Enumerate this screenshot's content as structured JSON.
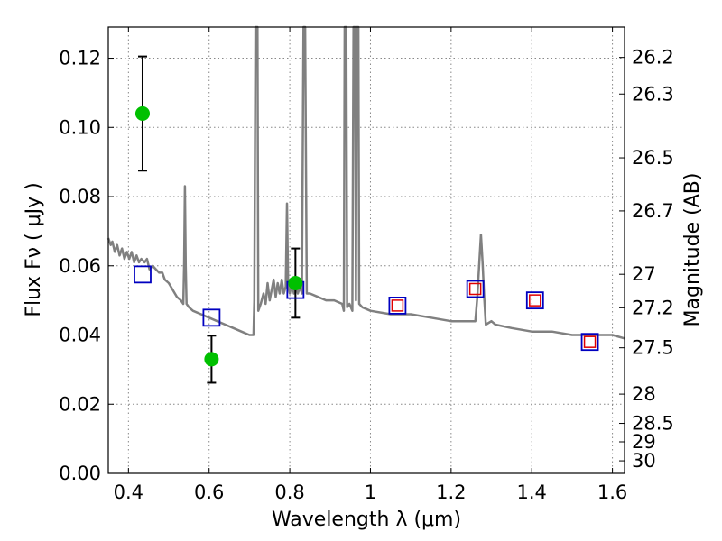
{
  "chart_data": {
    "type": "scatter",
    "xlabel": "Wavelength  λ (μm)",
    "ylabel": "Flux  Fν  ( μJy )",
    "ylabel_right": "Magnitude (AB)",
    "xlim": [
      0.35,
      1.63
    ],
    "ylim": [
      0.0,
      0.129
    ],
    "grid": true,
    "x_ticks": [
      {
        "value": 0.4,
        "label": "0.4"
      },
      {
        "value": 0.6,
        "label": "0.6"
      },
      {
        "value": 0.8,
        "label": "0.8"
      },
      {
        "value": 1.0,
        "label": "1"
      },
      {
        "value": 1.2,
        "label": "1.2"
      },
      {
        "value": 1.4,
        "label": "1.4"
      },
      {
        "value": 1.6,
        "label": "1.6"
      }
    ],
    "y_ticks": [
      {
        "value": 0.0,
        "label": "0.00"
      },
      {
        "value": 0.02,
        "label": "0.02"
      },
      {
        "value": 0.04,
        "label": "0.04"
      },
      {
        "value": 0.06,
        "label": "0.06"
      },
      {
        "value": 0.08,
        "label": "0.08"
      },
      {
        "value": 0.1,
        "label": "0.10"
      },
      {
        "value": 0.12,
        "label": "0.12"
      }
    ],
    "mag_ticks": [
      "26.2",
      "26.3",
      "26.5",
      "26.7",
      "27",
      "27.2",
      "27.5",
      "28",
      "28.5",
      "29",
      "30"
    ],
    "colors": {
      "model": "#808080",
      "observed": "#00c000",
      "errorbar": "#000000",
      "model_box": "#0000c0",
      "observed_box": "#e00000",
      "grid": "#888888"
    },
    "series": [
      {
        "kind": "line",
        "points": [
          [
            0.35,
            0.068
          ],
          [
            0.356,
            0.066
          ],
          [
            0.36,
            0.067
          ],
          [
            0.366,
            0.064
          ],
          [
            0.372,
            0.066
          ],
          [
            0.378,
            0.063
          ],
          [
            0.384,
            0.065
          ],
          [
            0.39,
            0.062
          ],
          [
            0.396,
            0.064
          ],
          [
            0.402,
            0.062
          ],
          [
            0.408,
            0.064
          ],
          [
            0.414,
            0.061
          ],
          [
            0.42,
            0.063
          ],
          [
            0.426,
            0.061
          ],
          [
            0.432,
            0.062
          ],
          [
            0.44,
            0.061
          ],
          [
            0.446,
            0.062
          ],
          [
            0.452,
            0.059
          ],
          [
            0.46,
            0.06
          ],
          [
            0.468,
            0.059
          ],
          [
            0.476,
            0.058
          ],
          [
            0.484,
            0.058
          ],
          [
            0.49,
            0.056
          ],
          [
            0.5,
            0.055
          ],
          [
            0.51,
            0.053
          ],
          [
            0.52,
            0.051
          ],
          [
            0.53,
            0.05
          ],
          [
            0.536,
            0.049
          ],
          [
            0.538,
            0.06
          ],
          [
            0.54,
            0.083
          ],
          [
            0.542,
            0.06
          ],
          [
            0.544,
            0.049
          ],
          [
            0.55,
            0.048
          ],
          [
            0.56,
            0.047
          ],
          [
            0.58,
            0.046
          ],
          [
            0.6,
            0.045
          ],
          [
            0.62,
            0.044
          ],
          [
            0.64,
            0.043
          ],
          [
            0.66,
            0.042
          ],
          [
            0.68,
            0.041
          ],
          [
            0.7,
            0.04
          ],
          [
            0.71,
            0.04
          ],
          [
            0.712,
            0.05
          ],
          [
            0.715,
            0.129
          ],
          [
            0.72,
            0.129
          ],
          [
            0.722,
            0.047
          ],
          [
            0.728,
            0.049
          ],
          [
            0.735,
            0.052
          ],
          [
            0.74,
            0.049
          ],
          [
            0.745,
            0.055
          ],
          [
            0.75,
            0.05
          ],
          [
            0.755,
            0.053
          ],
          [
            0.76,
            0.056
          ],
          [
            0.765,
            0.051
          ],
          [
            0.77,
            0.055
          ],
          [
            0.775,
            0.052
          ],
          [
            0.78,
            0.056
          ],
          [
            0.785,
            0.052
          ],
          [
            0.79,
            0.054
          ],
          [
            0.793,
            0.078
          ],
          [
            0.796,
            0.054
          ],
          [
            0.8,
            0.052
          ],
          [
            0.805,
            0.055
          ],
          [
            0.81,
            0.052
          ],
          [
            0.815,
            0.054
          ],
          [
            0.82,
            0.052
          ],
          [
            0.825,
            0.054
          ],
          [
            0.83,
            0.052
          ],
          [
            0.834,
            0.129
          ],
          [
            0.838,
            0.129
          ],
          [
            0.842,
            0.052
          ],
          [
            0.85,
            0.052
          ],
          [
            0.87,
            0.051
          ],
          [
            0.89,
            0.05
          ],
          [
            0.91,
            0.05
          ],
          [
            0.93,
            0.049
          ],
          [
            0.934,
            0.047
          ],
          [
            0.936,
            0.129
          ],
          [
            0.94,
            0.129
          ],
          [
            0.942,
            0.048
          ],
          [
            0.948,
            0.049
          ],
          [
            0.955,
            0.047
          ],
          [
            0.958,
            0.129
          ],
          [
            0.962,
            0.129
          ],
          [
            0.964,
            0.05
          ],
          [
            0.966,
            0.129
          ],
          [
            0.97,
            0.129
          ],
          [
            0.972,
            0.049
          ],
          [
            0.98,
            0.048
          ],
          [
            1.0,
            0.047
          ],
          [
            1.05,
            0.046
          ],
          [
            1.1,
            0.046
          ],
          [
            1.15,
            0.045
          ],
          [
            1.2,
            0.044
          ],
          [
            1.25,
            0.044
          ],
          [
            1.26,
            0.044
          ],
          [
            1.265,
            0.051
          ],
          [
            1.27,
            0.061
          ],
          [
            1.274,
            0.069
          ],
          [
            1.278,
            0.061
          ],
          [
            1.282,
            0.051
          ],
          [
            1.286,
            0.043
          ],
          [
            1.3,
            0.044
          ],
          [
            1.31,
            0.043
          ],
          [
            1.35,
            0.042
          ],
          [
            1.4,
            0.041
          ],
          [
            1.45,
            0.041
          ],
          [
            1.5,
            0.04
          ],
          [
            1.55,
            0.04
          ],
          [
            1.6,
            0.04
          ],
          [
            1.63,
            0.039
          ]
        ]
      },
      {
        "kind": "observed",
        "points": [
          {
            "x": 0.435,
            "y": 0.104,
            "err": 0.0165
          },
          {
            "x": 0.606,
            "y": 0.033,
            "err": 0.0068
          },
          {
            "x": 0.814,
            "y": 0.055,
            "err": 0.01
          }
        ]
      },
      {
        "kind": "model_box",
        "points": [
          {
            "x": 0.435,
            "y": 0.0575
          },
          {
            "x": 0.606,
            "y": 0.045
          },
          {
            "x": 0.814,
            "y": 0.053
          },
          {
            "x": 1.067,
            "y": 0.0485
          },
          {
            "x": 1.26,
            "y": 0.0533
          },
          {
            "x": 1.408,
            "y": 0.05
          },
          {
            "x": 1.544,
            "y": 0.038
          }
        ]
      },
      {
        "kind": "observed_box",
        "points": [
          {
            "x": 1.067,
            "y": 0.0485
          },
          {
            "x": 1.26,
            "y": 0.0533
          },
          {
            "x": 1.408,
            "y": 0.05
          },
          {
            "x": 1.544,
            "y": 0.038
          }
        ]
      }
    ]
  }
}
